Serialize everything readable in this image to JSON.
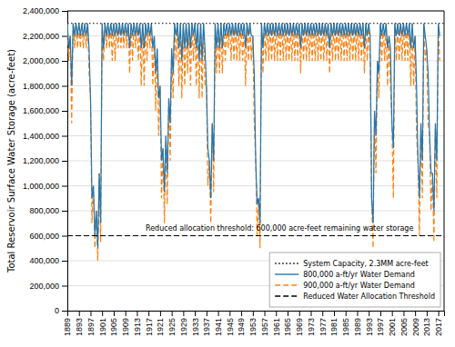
{
  "chart_data": {
    "type": "line",
    "ylabel": "Total Reservoir Surface Water Storage (acre-feet)",
    "xlim": [
      1889,
      2019
    ],
    "ylim": [
      0,
      2400000
    ],
    "xticks": [
      1889,
      1893,
      1897,
      1901,
      1905,
      1909,
      1913,
      1917,
      1921,
      1925,
      1929,
      1933,
      1937,
      1941,
      1945,
      1949,
      1953,
      1957,
      1961,
      1965,
      1969,
      1973,
      1977,
      1981,
      1985,
      1989,
      1993,
      1997,
      2001,
      2005,
      2009,
      2013,
      2017
    ],
    "yticks": [
      0,
      {
        "value": 200000,
        "label": "200,000"
      },
      {
        "value": 400000,
        "label": "400,000"
      },
      {
        "value": 600000,
        "label": "600,000"
      },
      {
        "value": 800000,
        "label": "800,000"
      },
      {
        "value": 1000000,
        "label": "1,000,000"
      },
      {
        "value": 1200000,
        "label": "1,200,000"
      },
      {
        "value": 1400000,
        "label": "1,400,000"
      },
      {
        "value": 1600000,
        "label": "1,600,000"
      },
      {
        "value": 1800000,
        "label": "1,800,000"
      },
      {
        "value": 2000000,
        "label": "2,000,000"
      },
      {
        "value": 2200000,
        "label": "2,200,000"
      },
      {
        "value": 2400000,
        "label": "2,400,000"
      }
    ],
    "grid": true,
    "legend": "lower right",
    "annotations": [
      {
        "text": "Reduced allocation threshold: 600,000 acre-feet remaining water storage",
        "x": 1916,
        "y": 640000
      }
    ],
    "reference_lines": [
      {
        "name": "System Capacity, 2.3MM acre-feet",
        "value": 2300000,
        "color": "#000000",
        "line_style": "dotted"
      },
      {
        "name": "Reduced Water Allocation Threshold",
        "value": 600000,
        "color": "#000000",
        "line_style": "dashed"
      }
    ],
    "x": [
      1889,
      1889.5,
      1890,
      1890.5,
      1891,
      1891.5,
      1892,
      1892.5,
      1893,
      1893.5,
      1894,
      1894.5,
      1895,
      1895.5,
      1896,
      1896.5,
      1897,
      1897.5,
      1898,
      1898.5,
      1899,
      1899.5,
      1900,
      1900.5,
      1901,
      1901.5,
      1902,
      1902.5,
      1903,
      1903.5,
      1904,
      1904.5,
      1905,
      1905.5,
      1906,
      1906.5,
      1907,
      1907.5,
      1908,
      1908.5,
      1909,
      1909.5,
      1910,
      1910.5,
      1911,
      1911.5,
      1912,
      1912.5,
      1913,
      1913.5,
      1914,
      1914.5,
      1915,
      1915.5,
      1916,
      1916.5,
      1917,
      1917.5,
      1918,
      1918.5,
      1919,
      1919.5,
      1920,
      1920.5,
      1921,
      1921.5,
      1922,
      1922.5,
      1923,
      1923.5,
      1924,
      1924.5,
      1925,
      1925.5,
      1926,
      1926.5,
      1927,
      1927.5,
      1928,
      1928.5,
      1929,
      1929.5,
      1930,
      1930.5,
      1931,
      1931.5,
      1932,
      1932.5,
      1933,
      1933.5,
      1934,
      1934.5,
      1935,
      1935.5,
      1936,
      1936.5,
      1937,
      1937.5,
      1938,
      1938.5,
      1939,
      1939.5,
      1940,
      1940.5,
      1941,
      1941.5,
      1942,
      1942.5,
      1943,
      1943.5,
      1944,
      1944.5,
      1945,
      1945.5,
      1946,
      1946.5,
      1947,
      1947.5,
      1948,
      1948.5,
      1949,
      1949.5,
      1950,
      1950.5,
      1951,
      1951.5,
      1952,
      1952.5,
      1953,
      1953.5,
      1954,
      1954.5,
      1955,
      1955.5,
      1956,
      1956.5,
      1957,
      1957.5,
      1958,
      1958.5,
      1959,
      1959.5,
      1960,
      1960.5,
      1961,
      1961.5,
      1962,
      1962.5,
      1963,
      1963.5,
      1964,
      1964.5,
      1965,
      1965.5,
      1966,
      1966.5,
      1967,
      1967.5,
      1968,
      1968.5,
      1969,
      1969.5,
      1970,
      1970.5,
      1971,
      1971.5,
      1972,
      1972.5,
      1973,
      1973.5,
      1974,
      1974.5,
      1975,
      1975.5,
      1976,
      1976.5,
      1977,
      1977.5,
      1978,
      1978.5,
      1979,
      1979.5,
      1980,
      1980.5,
      1981,
      1981.5,
      1982,
      1982.5,
      1983,
      1983.5,
      1984,
      1984.5,
      1985,
      1985.5,
      1986,
      1986.5,
      1987,
      1987.5,
      1988,
      1988.5,
      1989,
      1989.5,
      1990,
      1990.5,
      1991,
      1991.5,
      1992,
      1992.5,
      1993,
      1993.5,
      1994,
      1994.5,
      1995,
      1995.5,
      1996,
      1996.5,
      1997,
      1997.5,
      1998,
      1998.5,
      1999,
      1999.5,
      2000,
      2000.5,
      2001,
      2001.5,
      2002,
      2002.5,
      2003,
      2003.5,
      2004,
      2004.5,
      2005,
      2005.5,
      2006,
      2006.5,
      2007,
      2007.5,
      2008,
      2008.5,
      2009,
      2009.5,
      2010,
      2010.5,
      2011,
      2011.5,
      2012,
      2012.5,
      2013,
      2013.5,
      2014,
      2014.5,
      2015,
      2015.5,
      2016,
      2016.5,
      2017,
      2017.5
    ],
    "series": [
      {
        "name": "800,000 a-ft/yr Water Demand",
        "line_style": "solid",
        "values": [
          2300000,
          2100000,
          2200000,
          1800000,
          2300000,
          2200000,
          2300000,
          2200000,
          2300000,
          2200000,
          2300000,
          2200000,
          2300000,
          2200000,
          2300000,
          2100000,
          1700000,
          900000,
          1000000,
          600000,
          800000,
          500000,
          1100000,
          700000,
          2300000,
          2100000,
          2300000,
          2200000,
          2300000,
          2200000,
          2300000,
          2200000,
          2300000,
          2200000,
          2300000,
          2200000,
          2300000,
          2200000,
          2300000,
          2200000,
          2300000,
          2200000,
          2300000,
          2100000,
          2300000,
          2200000,
          2300000,
          2200000,
          2300000,
          2200000,
          2300000,
          2100000,
          2300000,
          2100000,
          2300000,
          2200000,
          2300000,
          2200000,
          2300000,
          2100000,
          2200000,
          1900000,
          2100000,
          1700000,
          1800000,
          1200000,
          1300000,
          950000,
          1400000,
          1100000,
          1700000,
          1500000,
          2100000,
          1900000,
          2300000,
          2200000,
          2300000,
          2100000,
          2300000,
          2000000,
          2300000,
          2100000,
          2300000,
          2100000,
          2300000,
          2100000,
          2300000,
          2200000,
          2300000,
          2100000,
          2300000,
          2000000,
          2300000,
          2000000,
          2300000,
          2100000,
          1800000,
          1300000,
          1200000,
          900000,
          1500000,
          1200000,
          2300000,
          2100000,
          2300000,
          2100000,
          2300000,
          2100000,
          2300000,
          2200000,
          2300000,
          2200000,
          2300000,
          2200000,
          2300000,
          2200000,
          2300000,
          2200000,
          2300000,
          2200000,
          2300000,
          2200000,
          2300000,
          2100000,
          2300000,
          2200000,
          2300000,
          2200000,
          2200000,
          1900000,
          1200000,
          850000,
          900000,
          700000,
          2300000,
          2100000,
          2300000,
          2200000,
          2300000,
          2200000,
          2300000,
          2200000,
          2300000,
          2200000,
          2300000,
          2200000,
          2300000,
          2200000,
          2300000,
          2200000,
          2300000,
          2200000,
          2300000,
          2200000,
          2300000,
          2200000,
          2300000,
          2200000,
          2300000,
          2200000,
          2300000,
          2100000,
          2300000,
          2200000,
          2300000,
          2200000,
          2300000,
          2200000,
          2300000,
          2200000,
          2300000,
          2200000,
          2300000,
          2200000,
          2300000,
          2200000,
          2300000,
          2200000,
          2300000,
          2200000,
          2300000,
          2100000,
          2300000,
          2200000,
          2300000,
          2200000,
          2300000,
          2200000,
          2300000,
          2200000,
          2300000,
          2200000,
          2300000,
          2200000,
          2300000,
          2200000,
          2300000,
          2200000,
          2300000,
          2200000,
          2300000,
          2200000,
          2300000,
          2200000,
          2300000,
          2100000,
          2300000,
          2200000,
          2300000,
          2200000,
          900000,
          700000,
          1600000,
          1400000,
          2000000,
          1900000,
          2300000,
          2200000,
          2300000,
          2200000,
          2300000,
          2100000,
          2200000,
          2100000,
          1500000,
          1300000,
          2300000,
          2200000,
          2300000,
          2200000,
          2300000,
          2200000,
          2300000,
          2200000,
          2300000,
          2200000,
          2300000,
          2100000,
          2300000,
          2100000,
          2200000,
          1800000,
          1200000,
          900000,
          1500000,
          1200000,
          2300000,
          2200000,
          2100000,
          1900000,
          1400000,
          1100000,
          1100000,
          800000,
          1500000,
          1200000,
          2300000,
          2200000
        ]
      },
      {
        "name": "900,000 a-ft/yr Water Demand",
        "line_style": "dashed",
        "values": [
          2300000,
          2000000,
          2200000,
          1500000,
          2300000,
          2100000,
          2300000,
          2100000,
          2300000,
          2100000,
          2300000,
          2100000,
          2300000,
          2100000,
          2300000,
          1900000,
          1700000,
          700000,
          1000000,
          500000,
          800000,
          400000,
          1100000,
          550000,
          2300000,
          2000000,
          2300000,
          2100000,
          2300000,
          2100000,
          2300000,
          2000000,
          2300000,
          2000000,
          2300000,
          2100000,
          2300000,
          2100000,
          2300000,
          2100000,
          2300000,
          2100000,
          2300000,
          1900000,
          2300000,
          2000000,
          2300000,
          2100000,
          2300000,
          2000000,
          2300000,
          1800000,
          2300000,
          1800000,
          2300000,
          2000000,
          2300000,
          2100000,
          2300000,
          1800000,
          2200000,
          1600000,
          2100000,
          1400000,
          1800000,
          900000,
          1300000,
          700000,
          1400000,
          850000,
          1700000,
          1200000,
          2100000,
          1700000,
          2300000,
          2000000,
          2300000,
          1800000,
          2300000,
          1700000,
          2300000,
          1800000,
          2300000,
          1900000,
          2300000,
          1800000,
          2300000,
          2000000,
          2300000,
          1800000,
          2300000,
          1700000,
          2300000,
          1700000,
          2300000,
          1800000,
          1800000,
          1000000,
          1200000,
          700000,
          1500000,
          950000,
          2300000,
          1900000,
          2300000,
          1900000,
          2300000,
          1900000,
          2300000,
          2000000,
          2300000,
          2100000,
          2300000,
          2000000,
          2300000,
          2000000,
          2300000,
          2000000,
          2300000,
          2000000,
          2300000,
          2000000,
          2300000,
          1800000,
          2300000,
          2000000,
          2300000,
          2000000,
          2200000,
          1500000,
          1200000,
          600000,
          900000,
          500000,
          2300000,
          1900000,
          2300000,
          2000000,
          2300000,
          2000000,
          2300000,
          2000000,
          2300000,
          2000000,
          2300000,
          2000000,
          2300000,
          2000000,
          2300000,
          2000000,
          2300000,
          2000000,
          2300000,
          2000000,
          2300000,
          2000000,
          2300000,
          2000000,
          2300000,
          2000000,
          2300000,
          1900000,
          2300000,
          2000000,
          2300000,
          2000000,
          2300000,
          2000000,
          2300000,
          2000000,
          2300000,
          2000000,
          2300000,
          2000000,
          2300000,
          2000000,
          2300000,
          2000000,
          2300000,
          2000000,
          2300000,
          1900000,
          2300000,
          2000000,
          2300000,
          2000000,
          2300000,
          2000000,
          2300000,
          2000000,
          2300000,
          2000000,
          2300000,
          2000000,
          2300000,
          2000000,
          2300000,
          2000000,
          2300000,
          2000000,
          2300000,
          2000000,
          2300000,
          2000000,
          2300000,
          1900000,
          2300000,
          2000000,
          2300000,
          2000000,
          900000,
          500000,
          1600000,
          1100000,
          2000000,
          1700000,
          2300000,
          2000000,
          2300000,
          2000000,
          2300000,
          1800000,
          2200000,
          1800000,
          1500000,
          900000,
          2300000,
          2000000,
          2300000,
          2000000,
          2300000,
          2000000,
          2300000,
          2000000,
          2300000,
          2000000,
          2300000,
          1800000,
          2300000,
          1800000,
          2200000,
          1400000,
          1200000,
          600000,
          1500000,
          900000,
          2300000,
          2000000,
          2100000,
          1500000,
          1400000,
          800000,
          1100000,
          550000,
          1500000,
          900000,
          2300000,
          2000000
        ]
      }
    ]
  }
}
